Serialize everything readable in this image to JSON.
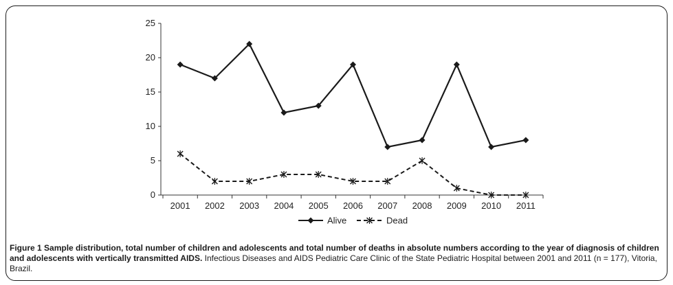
{
  "chart_data": {
    "type": "line",
    "categories": [
      "2001",
      "2002",
      "2003",
      "2004",
      "2005",
      "2006",
      "2007",
      "2008",
      "2009",
      "2010",
      "2011"
    ],
    "series": [
      {
        "name": "Alive",
        "values": [
          19,
          17,
          22,
          12,
          13,
          19,
          7,
          8,
          19,
          7,
          8
        ],
        "style": "solid",
        "marker": "diamond",
        "color": "#1a1a1a"
      },
      {
        "name": "Dead",
        "values": [
          6,
          2,
          2,
          3,
          3,
          2,
          2,
          5,
          1,
          0,
          0
        ],
        "style": "dashed",
        "marker": "star",
        "color": "#1a1a1a"
      }
    ],
    "ylim": [
      0,
      25
    ],
    "yticks": [
      "0",
      "5",
      "10",
      "15",
      "20",
      "25"
    ],
    "xlabel": "",
    "ylabel": "",
    "grid": false,
    "legend_position": "bottom"
  },
  "caption": {
    "bold": "Figure 1 Sample distribution, total number of children and adolescents and total number of deaths in absolute numbers according to the year of diagnosis of children and adolescents with vertically transmitted AIDS.",
    "normal": " Infectious Diseases and AIDS Pediatric Care Clinic of the State Pediatric Hospital between 2001 and 2011 (n = 177), Vitoria, Brazil."
  }
}
